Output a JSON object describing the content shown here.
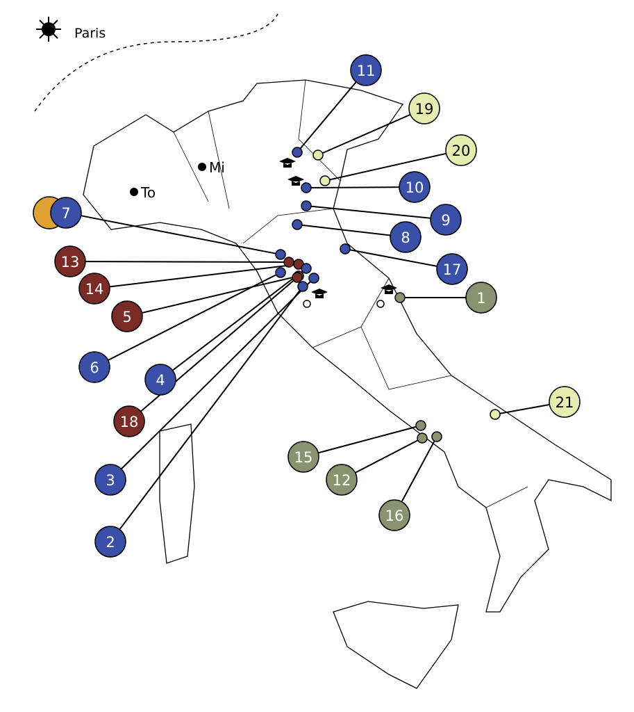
{
  "legend": {
    "label": "Paris"
  },
  "cities": [
    {
      "label": "Mi"
    },
    {
      "label": "To"
    }
  ],
  "colors": {
    "blue": "#3a4fa8",
    "red": "#7b2b25",
    "olive": "#8a936f",
    "light": "#e5edb0",
    "orange": "#e0a234"
  },
  "markers": [
    {
      "label": "11",
      "group": "blue"
    },
    {
      "label": "19",
      "group": "light"
    },
    {
      "label": "20",
      "group": "light"
    },
    {
      "label": "10",
      "group": "blue"
    },
    {
      "label": "9",
      "group": "blue"
    },
    {
      "label": "8",
      "group": "blue"
    },
    {
      "label": "17",
      "group": "blue"
    },
    {
      "label": "1",
      "group": "olive"
    },
    {
      "label": "21",
      "group": "light"
    },
    {
      "label": "15",
      "group": "olive"
    },
    {
      "label": "12",
      "group": "olive"
    },
    {
      "label": "16",
      "group": "olive"
    },
    {
      "label": "7",
      "group": "blue"
    },
    {
      "label": "13",
      "group": "red"
    },
    {
      "label": "14",
      "group": "red"
    },
    {
      "label": "5",
      "group": "red"
    },
    {
      "label": "6",
      "group": "blue"
    },
    {
      "label": "4",
      "group": "blue"
    },
    {
      "label": "18",
      "group": "red"
    },
    {
      "label": "3",
      "group": "blue"
    },
    {
      "label": "2",
      "group": "blue"
    }
  ]
}
